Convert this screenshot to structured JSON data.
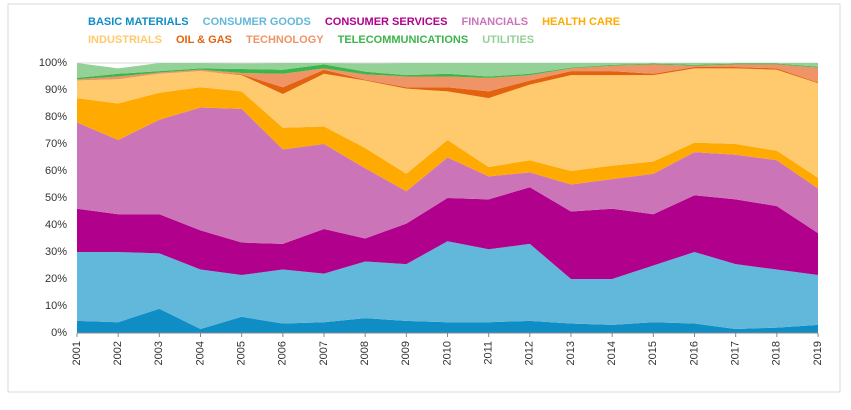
{
  "chart_data": {
    "type": "stacked-area-100",
    "categories": [
      "2001",
      "2002",
      "2003",
      "2004",
      "2005",
      "2006",
      "2007",
      "2008",
      "2009",
      "2010",
      "2011",
      "2012",
      "2013",
      "2014",
      "2015",
      "2016",
      "2017",
      "2018",
      "2019"
    ],
    "series": [
      {
        "name": "BASIC MATERIALS",
        "color": "#0f8ec6",
        "values": [
          4.5,
          4,
          9,
          1.5,
          6,
          3.5,
          4,
          5.5,
          4.5,
          4,
          4,
          4.5,
          3.5,
          3,
          4,
          3.5,
          1.5,
          2,
          3
        ]
      },
      {
        "name": "CONSUMER GOODS",
        "color": "#62b8da",
        "values": [
          25.5,
          26,
          20.5,
          22,
          15.5,
          20,
          18,
          21,
          21,
          30,
          27,
          28.5,
          16.5,
          17,
          21,
          26.5,
          24,
          21.5,
          18.5
        ]
      },
      {
        "name": "CONSUMER SERVICES",
        "color": "#b1008c",
        "values": [
          16,
          14,
          14.5,
          14.5,
          12,
          9.5,
          16.5,
          8.5,
          15,
          16,
          18.5,
          21,
          25,
          26,
          19,
          21,
          24,
          23.5,
          15.5
        ]
      },
      {
        "name": "FINANCIALS",
        "color": "#cc74b8",
        "values": [
          32,
          27.5,
          35,
          45.5,
          49.5,
          35,
          31.5,
          26,
          12,
          15,
          8.5,
          5.5,
          10,
          11,
          15,
          16,
          16.5,
          17,
          16.5
        ]
      },
      {
        "name": "HEALTH CARE",
        "color": "#ffaa00",
        "values": [
          9,
          13.5,
          10,
          7.5,
          6.5,
          8,
          6.5,
          7.5,
          6.5,
          6.5,
          3.5,
          4.5,
          5,
          5,
          4.5,
          3.5,
          4,
          3.5,
          4
        ]
      },
      {
        "name": "INDUSTRIALS",
        "color": "#ffca6e",
        "values": [
          6.5,
          9,
          7,
          6,
          6,
          12.5,
          19.5,
          25,
          31.5,
          18,
          25.5,
          28,
          35.5,
          33.5,
          32,
          27.5,
          28,
          30,
          35
        ]
      },
      {
        "name": "OIL & GAS",
        "color": "#e2620e",
        "values": [
          0,
          0,
          0,
          0,
          0.3,
          2.5,
          1.5,
          0.3,
          0.5,
          1.5,
          2.5,
          1.5,
          1.5,
          1.5,
          0.5,
          0.5,
          0.5,
          0.5,
          0.3
        ]
      },
      {
        "name": "TECHNOLOGY",
        "color": "#ee9466",
        "values": [
          0.5,
          1,
          0.5,
          0.5,
          0.5,
          5,
          0.5,
          2,
          4,
          4,
          5,
          2,
          1,
          2,
          3.5,
          0.5,
          1,
          1.5,
          5.5
        ]
      },
      {
        "name": "TELECOMMUNICATIONS",
        "color": "#3cb54a",
        "values": [
          0.5,
          1,
          0.5,
          0.5,
          1.5,
          1.5,
          1.5,
          1,
          0.5,
          1,
          0.5,
          0.5,
          0.3,
          0.3,
          0.3,
          0.3,
          0.3,
          0.3,
          0.3
        ]
      },
      {
        "name": "UTILITIES",
        "color": "#93d196",
        "values": [
          5.5,
          2,
          3,
          2,
          2,
          2.5,
          0.5,
          3,
          4.5,
          4,
          5,
          4,
          1.7,
          0.7,
          0.2,
          0.7,
          0.2,
          0.2,
          1.4
        ]
      }
    ],
    "ylim": [
      0,
      100
    ],
    "yticks": [
      {
        "value": 0,
        "label": "0%"
      },
      {
        "value": 10,
        "label": "10%"
      },
      {
        "value": 20,
        "label": "20%"
      },
      {
        "value": 30,
        "label": "30%"
      },
      {
        "value": 40,
        "label": "40%"
      },
      {
        "value": 50,
        "label": "50%"
      },
      {
        "value": 60,
        "label": "60%"
      },
      {
        "value": 70,
        "label": "70%"
      },
      {
        "value": 80,
        "label": "80%"
      },
      {
        "value": 90,
        "label": "90%"
      },
      {
        "value": 100,
        "label": "100%"
      }
    ],
    "grid": true
  }
}
